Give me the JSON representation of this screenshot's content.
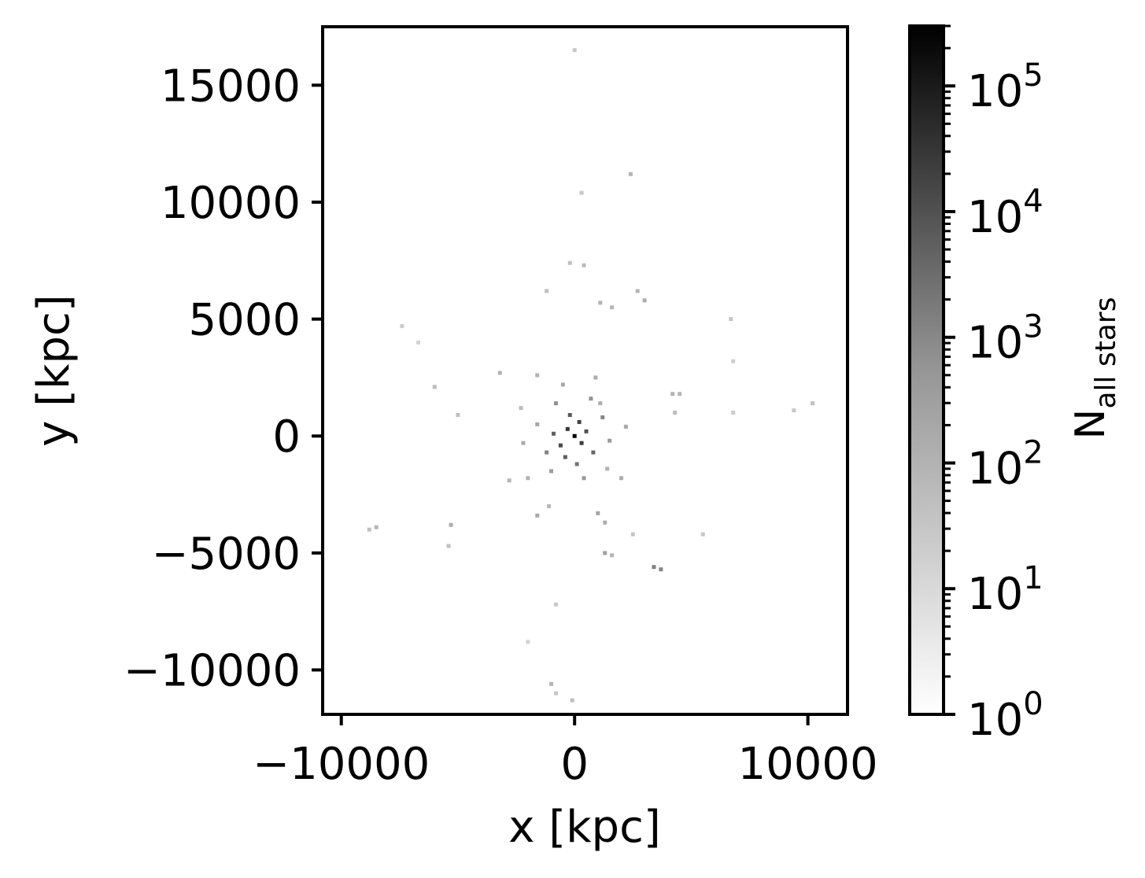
{
  "chart_data": {
    "type": "heatmap",
    "xlabel": "x [kpc]",
    "ylabel": "y [kpc]",
    "xlim": [
      -10800,
      11700
    ],
    "ylim": [
      -11900,
      17500
    ],
    "xticks": [
      {
        "value": -10000,
        "label": "−10000"
      },
      {
        "value": 0,
        "label": "0"
      },
      {
        "value": 10000,
        "label": "10000"
      }
    ],
    "yticks": [
      {
        "value": -10000,
        "label": "−10000"
      },
      {
        "value": -5000,
        "label": "−5000"
      },
      {
        "value": 0,
        "label": "0"
      },
      {
        "value": 5000,
        "label": "5000"
      },
      {
        "value": 10000,
        "label": "10000"
      },
      {
        "value": 15000,
        "label": "15000"
      }
    ],
    "colorbar": {
      "label_main": "N",
      "label_sub": "all stars",
      "scale": "log",
      "colormap": "Greys",
      "range": [
        1,
        300000
      ],
      "ticks": [
        {
          "value": 1,
          "base": "10",
          "exp": "0"
        },
        {
          "value": 10,
          "base": "10",
          "exp": "1"
        },
        {
          "value": 100,
          "base": "10",
          "exp": "2"
        },
        {
          "value": 1000,
          "base": "10",
          "exp": "3"
        },
        {
          "value": 10000,
          "base": "10",
          "exp": "4"
        },
        {
          "value": 100000,
          "base": "10",
          "exp": "5"
        }
      ]
    },
    "grid": false,
    "points": [
      {
        "x": 0,
        "y": 0,
        "n": 300000
      },
      {
        "x": -300,
        "y": 300,
        "n": 20000
      },
      {
        "x": 300,
        "y": -300,
        "n": 15000
      },
      {
        "x": -600,
        "y": -400,
        "n": 8000
      },
      {
        "x": 200,
        "y": 600,
        "n": 10000
      },
      {
        "x": -200,
        "y": 900,
        "n": 3000
      },
      {
        "x": 500,
        "y": 200,
        "n": 5000
      },
      {
        "x": -900,
        "y": 100,
        "n": 2000
      },
      {
        "x": 800,
        "y": -700,
        "n": 1500
      },
      {
        "x": -400,
        "y": -900,
        "n": 2500
      },
      {
        "x": 100,
        "y": -1200,
        "n": 800
      },
      {
        "x": -1200,
        "y": -700,
        "n": 400
      },
      {
        "x": 1200,
        "y": 800,
        "n": 300
      },
      {
        "x": -800,
        "y": 1400,
        "n": 200
      },
      {
        "x": 700,
        "y": 1600,
        "n": 150
      },
      {
        "x": 1500,
        "y": -200,
        "n": 100
      },
      {
        "x": -1600,
        "y": 500,
        "n": 60
      },
      {
        "x": 400,
        "y": -1800,
        "n": 120
      },
      {
        "x": -1000,
        "y": -1500,
        "n": 90
      },
      {
        "x": 1100,
        "y": 1400,
        "n": 40
      },
      {
        "x": -2000,
        "y": -1800,
        "n": 30
      },
      {
        "x": -2300,
        "y": 1200,
        "n": 20
      },
      {
        "x": 1400,
        "y": -1400,
        "n": 30
      },
      {
        "x": 1000,
        "y": -3300,
        "n": 60
      },
      {
        "x": 1300,
        "y": -3700,
        "n": 40
      },
      {
        "x": -1600,
        "y": -3400,
        "n": 50
      },
      {
        "x": -1100,
        "y": -3000,
        "n": 25
      },
      {
        "x": 2500,
        "y": -4200,
        "n": 12
      },
      {
        "x": 1300,
        "y": -5000,
        "n": 80
      },
      {
        "x": 1600,
        "y": -5100,
        "n": 30
      },
      {
        "x": 3400,
        "y": -5600,
        "n": 400
      },
      {
        "x": 3700,
        "y": -5700,
        "n": 300
      },
      {
        "x": -5300,
        "y": -3800,
        "n": 40
      },
      {
        "x": -8500,
        "y": -3900,
        "n": 25
      },
      {
        "x": -8800,
        "y": -4000,
        "n": 15
      },
      {
        "x": -3200,
        "y": 2700,
        "n": 30
      },
      {
        "x": -6000,
        "y": 2100,
        "n": 20
      },
      {
        "x": -5000,
        "y": 900,
        "n": 15
      },
      {
        "x": -2800,
        "y": -1900,
        "n": 25
      },
      {
        "x": 4200,
        "y": 1800,
        "n": 30
      },
      {
        "x": 4500,
        "y": 1800,
        "n": 25
      },
      {
        "x": 4300,
        "y": 1000,
        "n": 20
      },
      {
        "x": 3000,
        "y": 5800,
        "n": 40
      },
      {
        "x": 1100,
        "y": 5700,
        "n": 30
      },
      {
        "x": 1600,
        "y": 5500,
        "n": 25
      },
      {
        "x": 2700,
        "y": 6200,
        "n": 25
      },
      {
        "x": 400,
        "y": 7300,
        "n": 20
      },
      {
        "x": -200,
        "y": 7400,
        "n": 15
      },
      {
        "x": -1200,
        "y": 6200,
        "n": 15
      },
      {
        "x": 6700,
        "y": 5000,
        "n": 12
      },
      {
        "x": 10200,
        "y": 1400,
        "n": 15
      },
      {
        "x": 9400,
        "y": 1100,
        "n": 10
      },
      {
        "x": 6800,
        "y": 3200,
        "n": 8
      },
      {
        "x": 6800,
        "y": 1000,
        "n": 8
      },
      {
        "x": -7400,
        "y": 4700,
        "n": 8
      },
      {
        "x": -6700,
        "y": 4000,
        "n": 6
      },
      {
        "x": 2400,
        "y": 11200,
        "n": 30
      },
      {
        "x": 300,
        "y": 10400,
        "n": 10
      },
      {
        "x": 0,
        "y": 16500,
        "n": 10
      },
      {
        "x": -1000,
        "y": -10600,
        "n": 25
      },
      {
        "x": -100,
        "y": -11300,
        "n": 15
      },
      {
        "x": -800,
        "y": -11000,
        "n": 10
      },
      {
        "x": -800,
        "y": -7200,
        "n": 10
      },
      {
        "x": -2000,
        "y": -8800,
        "n": 6
      },
      {
        "x": -5400,
        "y": -4700,
        "n": 15
      },
      {
        "x": 5500,
        "y": -4200,
        "n": 10
      },
      {
        "x": 2200,
        "y": 400,
        "n": 50
      },
      {
        "x": -2200,
        "y": -300,
        "n": 40
      },
      {
        "x": 2000,
        "y": -1800,
        "n": 40
      },
      {
        "x": -500,
        "y": 2200,
        "n": 50
      },
      {
        "x": 900,
        "y": 2500,
        "n": 40
      },
      {
        "x": -1600,
        "y": 2600,
        "n": 30
      }
    ]
  }
}
